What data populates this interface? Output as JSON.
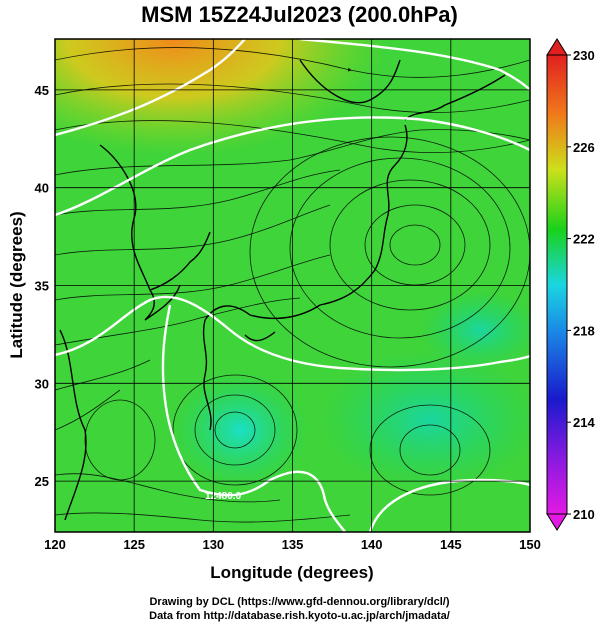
{
  "title": "MSM 15Z24Jul2023 (200.0hPa)",
  "axes": {
    "xlabel": "Longitude (degrees)",
    "ylabel": "Latitude  (degrees)",
    "x_ticks": [
      "120",
      "125",
      "130",
      "135",
      "140",
      "145",
      "150"
    ],
    "y_ticks": [
      "25",
      "30",
      "35",
      "40",
      "45"
    ],
    "x_range": [
      120,
      150
    ],
    "y_range": [
      22.4,
      47.6
    ]
  },
  "colorbar": {
    "labels": [
      "230",
      "226",
      "222",
      "218",
      "214",
      "210"
    ],
    "range": [
      210,
      230
    ],
    "colors": [
      "#e31ae3",
      "#1a1acc",
      "#1ad6e0",
      "#1ad11a",
      "#cce01a",
      "#f07a1a",
      "#e02020"
    ]
  },
  "contour_labels": [
    "12480.0"
  ],
  "credits": {
    "line1": "Drawing by DCL (https://www.gfd-dennou.org/library/dcl/)",
    "line2": "Data from http://database.rish.kyoto-u.ac.jp/arch/jmadata/"
  }
}
